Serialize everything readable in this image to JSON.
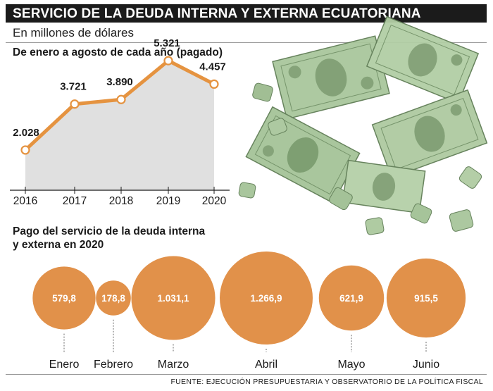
{
  "header": {
    "title": "SERVICIO DE LA DEUDA INTERNA Y EXTERNA ECUATORIANA",
    "subtitle": "En millones de dólares"
  },
  "colors": {
    "accent": "#e59340",
    "bubble": "#e1914a",
    "overlap": "#c55f1f",
    "area": "#e0e0e0",
    "banknote": "#9fbf94"
  },
  "chart_data": [
    {
      "type": "area",
      "title": "De enero a agosto de cada año (pagado)",
      "categories": [
        "2016",
        "2017",
        "2018",
        "2019",
        "2020"
      ],
      "values": [
        2028,
        3721,
        3890,
        5321,
        4457
      ],
      "value_labels": [
        "2.028",
        "3.721",
        "3.890",
        "5.321",
        "4.457"
      ],
      "ylim": [
        0,
        6000
      ],
      "xlabel": "",
      "ylabel": ""
    },
    {
      "type": "bubble",
      "title": [
        "Pago del servicio de la deuda interna",
        "y externa en 2020"
      ],
      "categories": [
        "Enero",
        "Febrero",
        "Marzo",
        "Abril",
        "Mayo",
        "Junio"
      ],
      "values": [
        579.8,
        178.8,
        1031.1,
        1266.9,
        621.9,
        915.5
      ],
      "value_labels": [
        "579,8",
        "178,8",
        "1.031,1",
        "1.266,9",
        "621,9",
        "915,5"
      ]
    }
  ],
  "footer": {
    "source": "FUENTE: EJECUCIÓN PRESUPUESTARIA Y OBSERVATORIO DE LA POLÍTICA FISCAL"
  },
  "illustration": {
    "icon": "banknote-puzzle-pieces"
  }
}
